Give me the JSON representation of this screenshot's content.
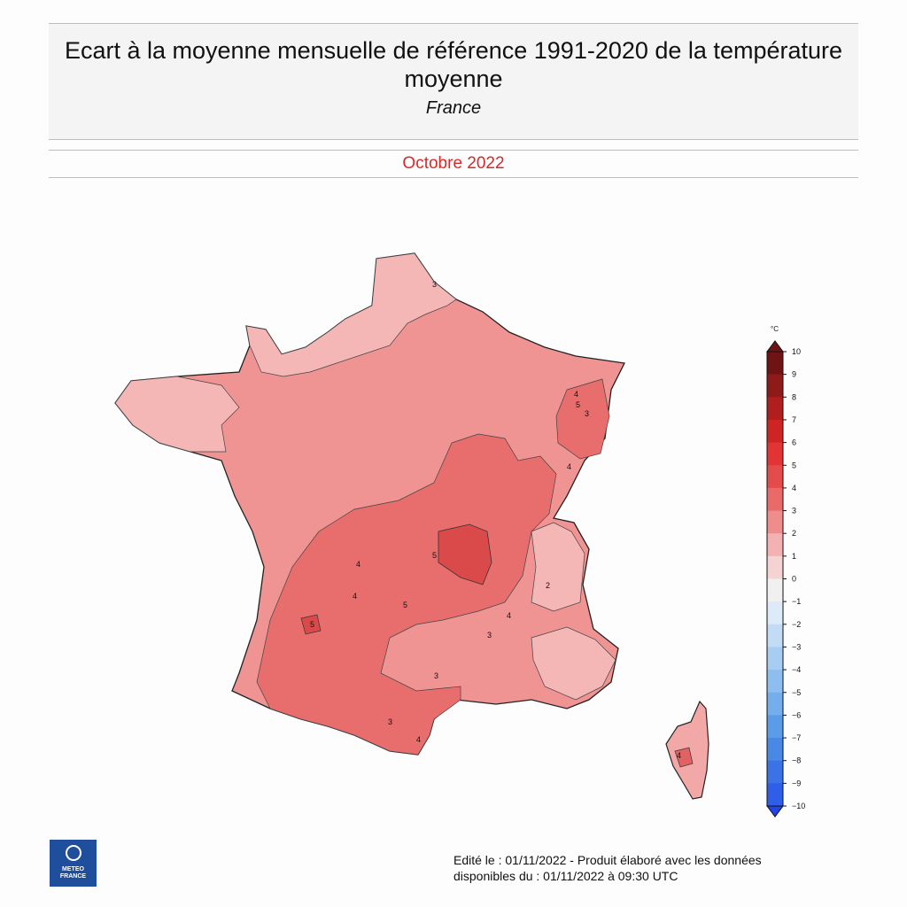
{
  "header": {
    "title": "Ecart à la moyenne mensuelle de référence 1991-2020 de la température moyenne",
    "subtitle": "France",
    "period": "Octobre 2022"
  },
  "legend": {
    "unit": "°C",
    "ticks": [
      10,
      9,
      8,
      7,
      6,
      5,
      4,
      3,
      2,
      1,
      0,
      -1,
      -2,
      -3,
      -4,
      -5,
      -6,
      -7,
      -8,
      -9,
      -10
    ],
    "colors": [
      "#6f1414",
      "#8e1a1a",
      "#b01e1e",
      "#cf2424",
      "#e23434",
      "#e44c4c",
      "#ea6a6a",
      "#ef8c8c",
      "#f3b1b1",
      "#f6d3d3",
      "#f0f0f0",
      "#ddeaf8",
      "#c2dcf5",
      "#a8cdf2",
      "#8ebeef",
      "#74aeec",
      "#5b9ce8",
      "#4a88e6",
      "#3b72e6",
      "#2f5ee8",
      "#2244e8"
    ]
  },
  "map": {
    "contour_labels": [
      "3",
      "4",
      "5",
      "4",
      "3",
      "4",
      "5",
      "4",
      "5",
      "3",
      "4",
      "2",
      "3",
      "4",
      "5",
      "3",
      "4"
    ]
  },
  "logo": {
    "line1": "METEO",
    "line2": "FRANCE"
  },
  "footer": {
    "line1": "Edité le : 01/11/2022 - Produit élaboré avec les données",
    "line2": "disponibles du : 01/11/2022 à 09:30 UTC"
  }
}
